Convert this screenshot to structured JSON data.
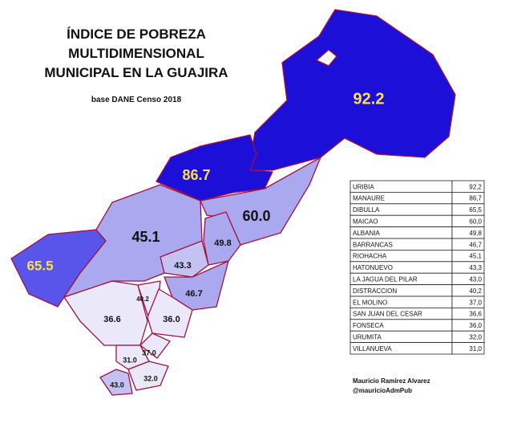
{
  "header": {
    "title_lines": [
      "ÍNDICE DE POBREZA",
      "MULTIDIMENSIONAL",
      "MUNICIPAL EN LA GUAJIRA"
    ],
    "subtitle": "base DANE Censo 2018"
  },
  "map_labels": [
    "92.2",
    "86.7",
    "60.0",
    "45.1",
    "65.5",
    "49.8",
    "43.3",
    "46.7",
    "40.2",
    "36.6",
    "36.0",
    "37.0",
    "31.0",
    "32.0",
    "43.0"
  ],
  "table": {
    "rows": [
      [
        "URIBIA",
        "92,2"
      ],
      [
        "MANAURE",
        "86,7"
      ],
      [
        "DIBULLA",
        "65,5"
      ],
      [
        "MAICAO",
        "60,0"
      ],
      [
        "ALBANIA",
        "49,8"
      ],
      [
        "BARRANCAS",
        "46,7"
      ],
      [
        "RIOHACHA",
        "45,1"
      ],
      [
        "HATONUEVO",
        "43,3"
      ],
      [
        "LA JAGUA DEL PILAR",
        "43,0"
      ],
      [
        "DISTRACCION",
        "40,2"
      ],
      [
        "EL MOLINO",
        "37,0"
      ],
      [
        "SAN JUAN DEL CESAR",
        "36,6"
      ],
      [
        "FONSECA",
        "36,0"
      ],
      [
        "URUMITA",
        "32,0"
      ],
      [
        "VILLANUEVA",
        "31,0"
      ]
    ]
  },
  "credits": [
    "Mauricio Ramirez Alvarez",
    "@mauricioAdmPub"
  ]
}
